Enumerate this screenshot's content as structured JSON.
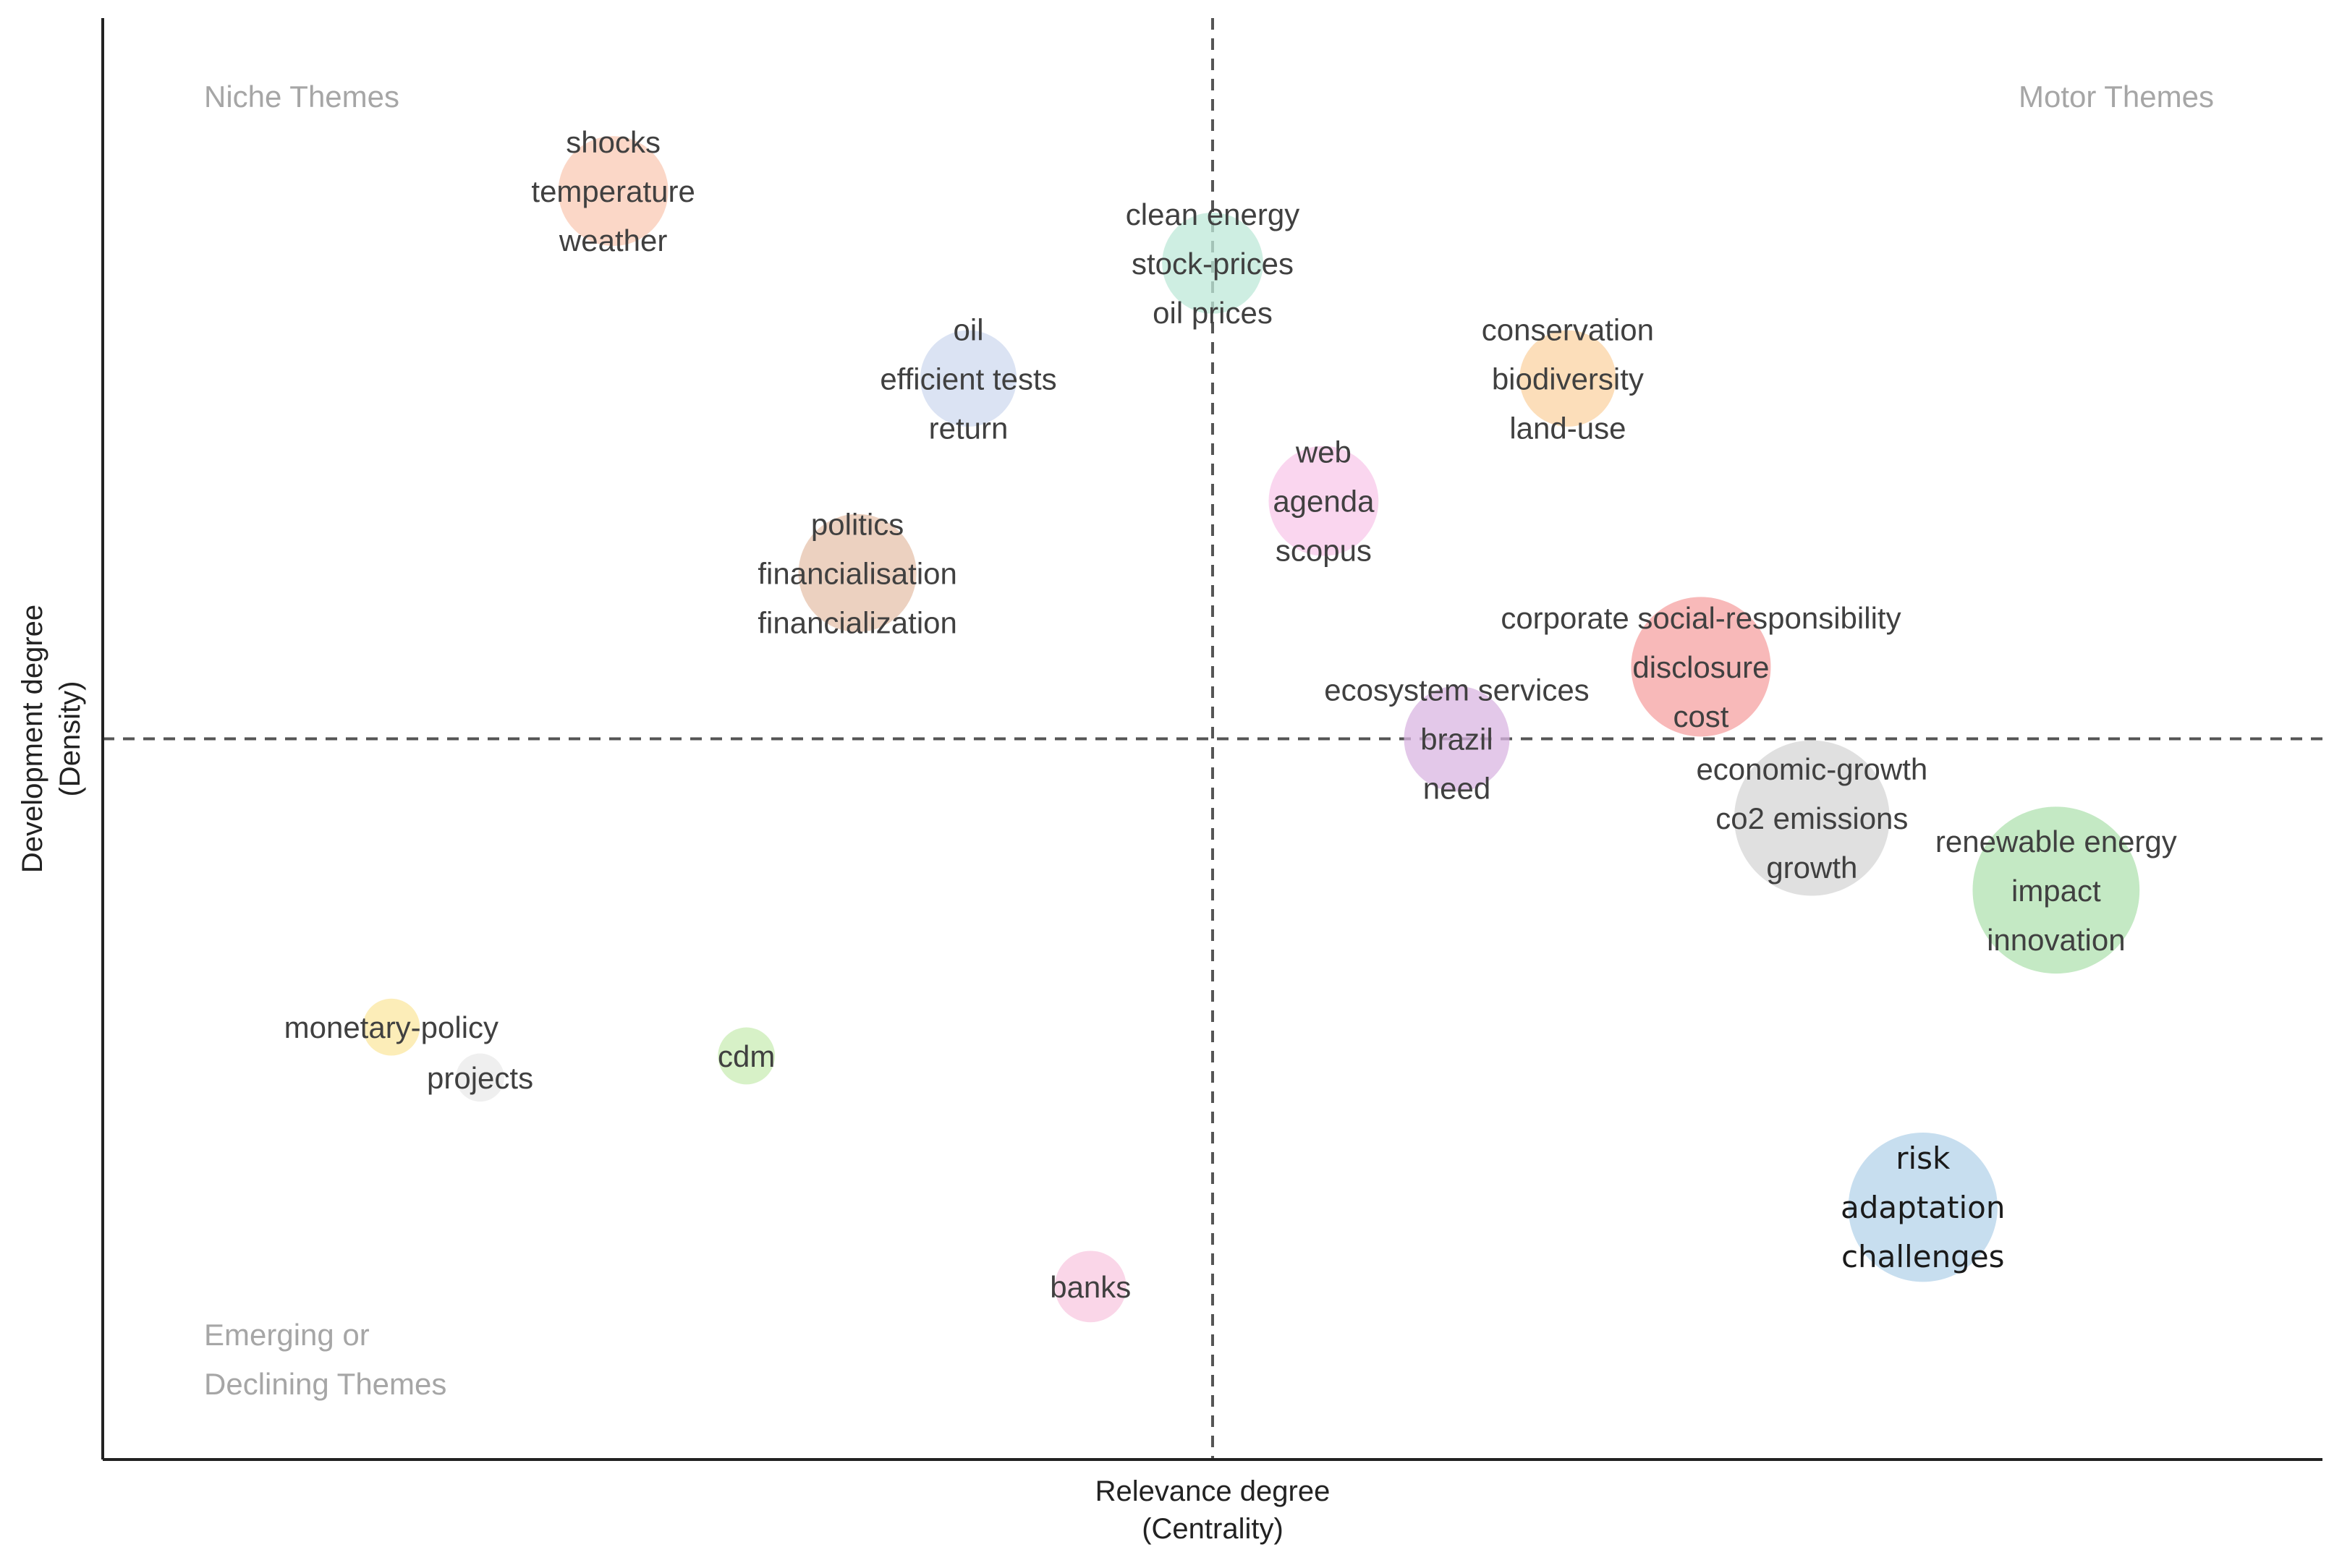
{
  "chart_data": {
    "type": "scatter",
    "subtype": "thematic-map-bubble",
    "xlabel": [
      "Relevance degree",
      "(Centrality)"
    ],
    "ylabel": [
      "Development degree",
      "(Density)"
    ],
    "xlim": [
      0,
      100
    ],
    "ylim": [
      0,
      100
    ],
    "x_divider": 50,
    "y_divider": 50,
    "grid": false,
    "quadrants": {
      "top_left": [
        "Niche Themes"
      ],
      "top_right": [
        "Motor Themes"
      ],
      "bottom_left": [
        "Emerging or",
        "Declining Themes"
      ]
    },
    "clusters": [
      {
        "labels": [
          "shocks",
          "temperature",
          "weather"
        ],
        "x": 23,
        "y": 88,
        "size": 1.3,
        "color": "#f9c9b4"
      },
      {
        "labels": [
          "clean energy",
          "stock-prices",
          "oil prices"
        ],
        "x": 50,
        "y": 83,
        "size": 1.1,
        "color": "#bde8d8"
      },
      {
        "labels": [
          "oil",
          "efficient tests",
          "return"
        ],
        "x": 39,
        "y": 75,
        "size": 1.0,
        "color": "#cfd9ef"
      },
      {
        "labels": [
          "conservation",
          "biodiversity",
          "land-use"
        ],
        "x": 66,
        "y": 75,
        "size": 1.0,
        "color": "#fbd3a3"
      },
      {
        "labels": [
          "web",
          "agenda",
          "scopus"
        ],
        "x": 55,
        "y": 66.5,
        "size": 1.3,
        "color": "#f8c8ea"
      },
      {
        "labels": [
          "politics",
          "financialisation",
          "financialization"
        ],
        "x": 34,
        "y": 61.5,
        "size": 1.5,
        "color": "#e6c2ab"
      },
      {
        "labels": [
          "corporate social-responsibility",
          "disclosure",
          "cost"
        ],
        "x": 72,
        "y": 55,
        "size": 2.1,
        "color": "#f6a2a2"
      },
      {
        "labels": [
          "ecosystem services",
          "brazil",
          "need"
        ],
        "x": 61,
        "y": 50,
        "size": 1.2,
        "color": "#d9b6e2"
      },
      {
        "labels": [
          "economic-growth",
          "co2 emissions",
          "growth"
        ],
        "x": 77,
        "y": 44.5,
        "size": 2.6,
        "color": "#d6d6d6"
      },
      {
        "labels": [
          "renewable energy",
          "impact",
          "innovation"
        ],
        "x": 88,
        "y": 39.5,
        "size": 3.0,
        "color": "#b0e2b0"
      },
      {
        "labels": [
          "monetary-policy"
        ],
        "x": 13,
        "y": 30,
        "size": 0.35,
        "color": "#fbe7a0"
      },
      {
        "labels": [
          "projects"
        ],
        "x": 17,
        "y": 26.5,
        "size": 0.25,
        "color": "#e9e9e9"
      },
      {
        "labels": [
          "cdm"
        ],
        "x": 29,
        "y": 28,
        "size": 0.35,
        "color": "#c9ecb4"
      },
      {
        "labels": [
          "risk",
          "adaptation",
          "challenges"
        ],
        "x": 82,
        "y": 17.5,
        "size": 2.4,
        "color": "#b4d3ea",
        "dark_text": true
      },
      {
        "labels": [
          "banks"
        ],
        "x": 44.5,
        "y": 12,
        "size": 0.55,
        "color": "#f8c8e0"
      }
    ]
  }
}
